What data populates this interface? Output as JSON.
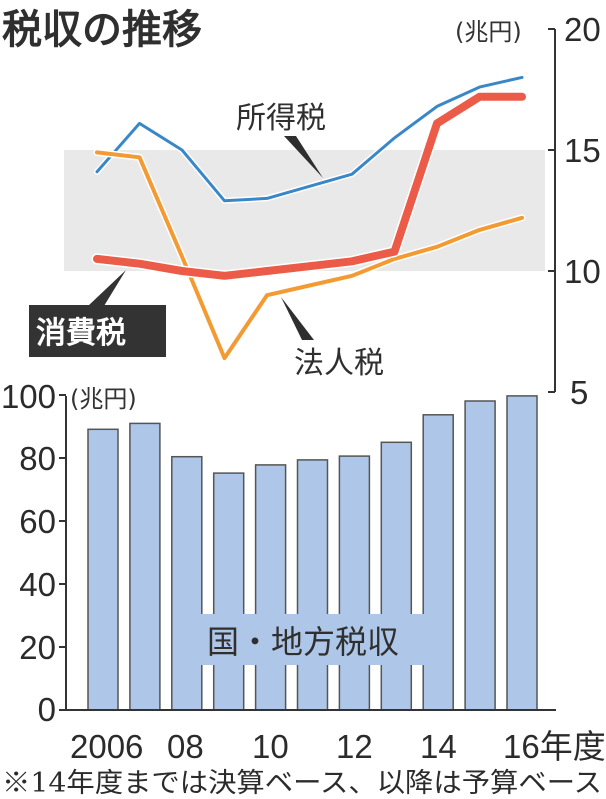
{
  "title": "税収の推移",
  "colors": {
    "income_tax": "#3a87c8",
    "consumption_tax": "#ec5b48",
    "corporate_tax": "#f39a33",
    "bars": "#aec6e7",
    "bar_border": "#555555",
    "band": "#e9e9e9",
    "label_box": "#333333",
    "axis": "#333333"
  },
  "line_chart": {
    "unit": "(兆円)",
    "y_ticks": [
      "20",
      "15",
      "10",
      "5"
    ],
    "labels": {
      "income_tax": "所得税",
      "consumption_tax": "消費税",
      "corporate_tax": "法人税"
    }
  },
  "bar_chart": {
    "unit": "(兆円)",
    "y_ticks": [
      "100",
      "80",
      "60",
      "40",
      "20",
      "0"
    ],
    "series_label": "国・地方税収",
    "x_labels": [
      "2006",
      "08",
      "10",
      "12",
      "14",
      "16年度"
    ]
  },
  "footnote": "※14年度までは決算ベース、以降は予算ベース",
  "chart_data": [
    {
      "type": "line",
      "title": "税収の推移",
      "ylabel": "(兆円)",
      "ylim": [
        5,
        20
      ],
      "yticks": [
        5,
        10,
        15,
        20
      ],
      "x": [
        2006,
        2007,
        2008,
        2009,
        2010,
        2011,
        2012,
        2013,
        2014,
        2015,
        2016
      ],
      "shaded_band": [
        10,
        15
      ],
      "axis_position": "right",
      "series": [
        {
          "name": "所得税",
          "values": [
            14.1,
            16.1,
            15.0,
            12.9,
            13.0,
            13.5,
            14.0,
            15.5,
            16.8,
            17.6,
            18.0
          ]
        },
        {
          "name": "消費税",
          "values": [
            10.5,
            10.3,
            10.0,
            9.8,
            10.0,
            10.2,
            10.4,
            10.8,
            16.1,
            17.2,
            17.2
          ]
        },
        {
          "name": "法人税",
          "values": [
            14.9,
            14.7,
            10.6,
            6.4,
            9.0,
            9.4,
            9.8,
            10.5,
            11.0,
            11.7,
            12.2
          ]
        }
      ]
    },
    {
      "type": "bar",
      "title": "国・地方税収",
      "ylabel": "(兆円)",
      "ylim": [
        0,
        100
      ],
      "yticks": [
        0,
        20,
        40,
        60,
        80,
        100
      ],
      "categories": [
        "2006",
        "2007",
        "2008",
        "2009",
        "2010",
        "2011",
        "2012",
        "2013",
        "2014",
        "2015",
        "2016"
      ],
      "xtick_labels": [
        "2006",
        "08",
        "10",
        "12",
        "14",
        "16年度"
      ],
      "values": [
        89.1,
        91.0,
        80.4,
        75.2,
        77.8,
        79.4,
        80.6,
        85.0,
        93.7,
        98.1,
        99.7
      ],
      "grid": false,
      "legend": "none"
    }
  ]
}
